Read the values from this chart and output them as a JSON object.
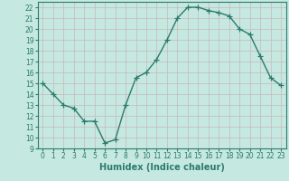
{
  "x": [
    0,
    1,
    2,
    3,
    4,
    5,
    6,
    7,
    8,
    9,
    10,
    11,
    12,
    13,
    14,
    15,
    16,
    17,
    18,
    19,
    20,
    21,
    22,
    23
  ],
  "y": [
    15,
    14,
    13,
    12.7,
    11.5,
    11.5,
    9.5,
    9.8,
    13,
    15.5,
    16,
    17.2,
    19,
    21,
    22,
    22,
    21.7,
    21.5,
    21.2,
    20,
    19.5,
    17.5,
    15.5,
    14.8
  ],
  "line_color": "#2d7a6e",
  "bg_color": "#c5e8e0",
  "grid_color": "#c8b8b8",
  "xlabel": "Humidex (Indice chaleur)",
  "ylim": [
    9,
    22.5
  ],
  "xlim": [
    -0.5,
    23.5
  ],
  "yticks": [
    9,
    10,
    11,
    12,
    13,
    14,
    15,
    16,
    17,
    18,
    19,
    20,
    21,
    22
  ],
  "xticks": [
    0,
    1,
    2,
    3,
    4,
    5,
    6,
    7,
    8,
    9,
    10,
    11,
    12,
    13,
    14,
    15,
    16,
    17,
    18,
    19,
    20,
    21,
    22,
    23
  ],
  "marker": "+",
  "marker_size": 4,
  "line_width": 1.0,
  "tick_label_fontsize": 5.5,
  "xlabel_fontsize": 7.0
}
